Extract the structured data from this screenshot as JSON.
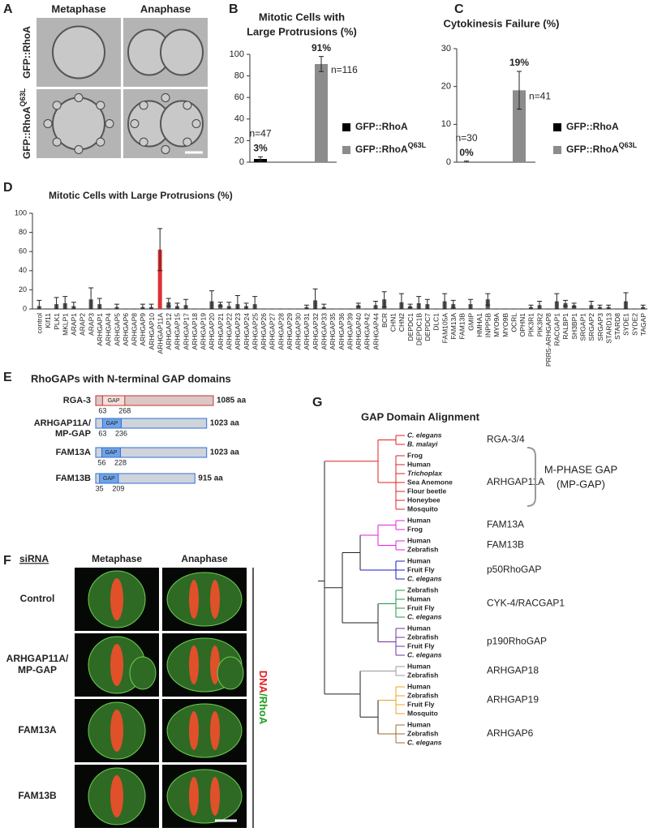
{
  "panel_labels": [
    "A",
    "B",
    "C",
    "D",
    "E",
    "F",
    "G"
  ],
  "panel_a": {
    "columns": [
      "Metaphase",
      "Anaphase"
    ],
    "rows": [
      {
        "label": "GFP::RhoA"
      },
      {
        "label": "GFP::RhoA",
        "superscript": "Q63L"
      }
    ]
  },
  "chart_data": [
    {
      "type": "bar",
      "title": [
        "Mitotic Cells with",
        "Large Protrusions (%)"
      ],
      "categories": [
        null,
        null
      ],
      "series": [
        {
          "name": "GFP::RhoA",
          "color": "#000000",
          "values": [
            3,
            null
          ],
          "value_labels": [
            "3%",
            null
          ],
          "errors": [
            2,
            null
          ],
          "annotation": "n=47"
        },
        {
          "name": "GFP::RhoA",
          "superscript": "Q63L",
          "color": "#8c8c8c",
          "values": [
            null,
            91
          ],
          "value_labels": [
            null,
            "91%"
          ],
          "errors": [
            null,
            7
          ],
          "annotation": "n=116"
        }
      ],
      "ylim": [
        0,
        100
      ],
      "yticks": [
        0,
        20,
        40,
        60,
        80,
        100
      ]
    },
    {
      "type": "bar",
      "title": [
        "Cytokinesis Failure (%)"
      ],
      "categories": [
        null,
        null
      ],
      "series": [
        {
          "name": "GFP::RhoA",
          "color": "#000000",
          "values": [
            0,
            null
          ],
          "value_labels": [
            "0%",
            null
          ],
          "errors": [
            0.3,
            null
          ],
          "annotation": "n=30"
        },
        {
          "name": "GFP::RhoA",
          "superscript": "Q63L",
          "color": "#8c8c8c",
          "values": [
            null,
            19
          ],
          "value_labels": [
            null,
            "19%"
          ],
          "errors": [
            null,
            5
          ],
          "annotation": "n=41"
        }
      ],
      "ylim": [
        0,
        30
      ],
      "yticks": [
        0,
        10,
        20,
        30
      ]
    },
    {
      "type": "bar",
      "title": [
        "Mitotic Cells with Large Protrusions (%)"
      ],
      "categories": [
        "control",
        "Kif11",
        "PLK1",
        "MKLP1",
        "ARAP1",
        "ARAP2",
        "ARAP3",
        "ARHGAP1",
        "ARHGAP4",
        "ARHGAP5",
        "ARHGAP6",
        "ARHGAP8",
        "ARHGAP9",
        "ARHGAP10",
        "ARHGAP11A",
        "ARHGAP12",
        "ARHGAP15",
        "ARHGAP17",
        "ARHGAP18",
        "ARHGAP19",
        "ARHGAP20",
        "ARHGAP21",
        "ARHGAP22",
        "ARHGAP23",
        "ARHGAP24",
        "ARHGAP25",
        "ARHGAP26",
        "ARHGAP27",
        "ARHGAP28",
        "ARHGAP29",
        "ARHGAP30",
        "ARHGAP31",
        "ARHGAP32",
        "ARHGAP33",
        "ARHGAP35",
        "ARHGAP36",
        "ARHGAP39",
        "ARHGAP40",
        "ARHGAP42",
        "ARHGAP44",
        "BCR",
        "CHN1",
        "CHN2",
        "DEPDC1",
        "DEPDC1B",
        "DEPDC7",
        "DLC1",
        "FAM105A",
        "FAM13A",
        "FAM13B",
        "GMIP",
        "HMHA1",
        "INPP5B",
        "MYO9A",
        "MYO9B",
        "OCRL",
        "OPHN1",
        "PIK3R1",
        "PIK3R2",
        "PRR5-ARHGAP8",
        "RACGAP1",
        "RALBP1",
        "SH3BP1",
        "SRGAP1",
        "SRGAP2",
        "SRGAP3",
        "STARD13",
        "STARD8",
        "SYDE1",
        "SYDE2",
        "TAGAP"
      ],
      "values": [
        3,
        0,
        5,
        6,
        3,
        0,
        10,
        5,
        0,
        2,
        0,
        0,
        2,
        2,
        62,
        7,
        3,
        4,
        0,
        0,
        8,
        5,
        3,
        5,
        3,
        5,
        0,
        0,
        0,
        0,
        0,
        2,
        9,
        2,
        0,
        0,
        0,
        4,
        0,
        4,
        10,
        0,
        7,
        3,
        6,
        5,
        0,
        8,
        5,
        0,
        5,
        0,
        10,
        0,
        0,
        0,
        0,
        2,
        4,
        0,
        8,
        6,
        4,
        0,
        4,
        2,
        2,
        0,
        8,
        0,
        2
      ],
      "errors": [
        6,
        0,
        7,
        7,
        4,
        0,
        12,
        6,
        0,
        3,
        0,
        0,
        3,
        3,
        22,
        4,
        3,
        6,
        0,
        0,
        11,
        2,
        4,
        9,
        3,
        8,
        0,
        0,
        0,
        0,
        0,
        2,
        12,
        3,
        0,
        0,
        0,
        2,
        0,
        4,
        8,
        0,
        9,
        2,
        7,
        5,
        0,
        8,
        4,
        0,
        5,
        0,
        6,
        0,
        0,
        0,
        0,
        2,
        4,
        0,
        8,
        3,
        2,
        0,
        4,
        2,
        2,
        0,
        9,
        0,
        2
      ],
      "color": "#555555",
      "colors": [
        "#555555",
        "#555555",
        "#555555",
        "#555555",
        "#555555",
        "#555555",
        "#555555",
        "#555555",
        "#555555",
        "#555555",
        "#555555",
        "#555555",
        "#555555",
        "#555555",
        "#e03030",
        "#555555",
        "#555555",
        "#555555",
        "#555555",
        "#555555",
        "#555555",
        "#555555",
        "#555555",
        "#555555",
        "#555555",
        "#555555",
        "#555555",
        "#555555",
        "#555555",
        "#555555",
        "#555555",
        "#555555",
        "#555555",
        "#555555",
        "#555555",
        "#555555",
        "#555555",
        "#555555",
        "#555555",
        "#555555",
        "#555555",
        "#555555",
        "#555555",
        "#555555",
        "#555555",
        "#555555",
        "#555555",
        "#555555",
        "#555555",
        "#555555",
        "#555555",
        "#555555",
        "#555555",
        "#555555",
        "#555555",
        "#555555",
        "#555555",
        "#555555",
        "#555555",
        "#555555",
        "#555555",
        "#555555",
        "#555555",
        "#555555",
        "#555555",
        "#555555",
        "#555555",
        "#555555",
        "#555555",
        "#555555",
        "#555555"
      ],
      "ylim": [
        0,
        100
      ],
      "yticks": [
        0,
        20,
        40,
        60,
        80,
        100
      ]
    }
  ],
  "panel_e": {
    "title": "RhoGAPs with N-terminal GAP domains",
    "gap_label": "GAP",
    "proteins": [
      {
        "name": [
          "RGA-3"
        ],
        "start": 63,
        "end": 268,
        "length": 1085,
        "length_label": "1085 aa",
        "fill": "#dcc6c6",
        "stroke": "#c0392b",
        "gap_fill": "#f3dede"
      },
      {
        "name": [
          "ARHGAP11A/",
          "MP-GAP"
        ],
        "start": 63,
        "end": 236,
        "length": 1023,
        "length_label": "1023 aa",
        "fill": "#cfd3dc",
        "stroke": "#2f6fd6",
        "gap_fill": "#6fa3e8"
      },
      {
        "name": [
          "FAM13A"
        ],
        "start": 56,
        "end": 228,
        "length": 1023,
        "length_label": "1023 aa",
        "fill": "#cfd3dc",
        "stroke": "#2f6fd6",
        "gap_fill": "#6fa3e8"
      },
      {
        "name": [
          "FAM13B"
        ],
        "start": 35,
        "end": 209,
        "length": 915,
        "length_label": "915 aa",
        "fill": "#cfd3dc",
        "stroke": "#2f6fd6",
        "gap_fill": "#6fa3e8"
      }
    ]
  },
  "panel_f": {
    "header": "siRNA",
    "columns": [
      "Metaphase",
      "Anaphase"
    ],
    "rows": [
      [
        "Control"
      ],
      [
        "ARHGAP11A/",
        "MP-GAP"
      ],
      [
        "FAM13A"
      ],
      [
        "FAM13B"
      ]
    ],
    "stain": [
      {
        "text": "DNA",
        "color": "#e02020"
      },
      {
        "text": "/RhoA",
        "color": "#22a022"
      }
    ]
  },
  "panel_g": {
    "title": "GAP Domain Alignment",
    "bracket": [
      "M-PHASE GAP",
      "(MP-GAP)"
    ],
    "groups": [
      {
        "label": "RGA-3/4",
        "color": "#e02020",
        "leaves": [
          {
            "name": "C. elegans",
            "italic": true
          },
          {
            "name": "B. malayi",
            "italic": true
          }
        ]
      },
      {
        "label": "ARHGAP11A",
        "color": "#e02020",
        "leaves": [
          "Frog",
          "Human",
          {
            "name": "Trichoplax",
            "italic": true
          },
          "Sea Anemone",
          "Flour beetle",
          "Honeybee",
          "Mosquito"
        ]
      },
      {
        "label": "FAM13A",
        "color": "#e020e0",
        "leaves": [
          "Human",
          "Frog"
        ]
      },
      {
        "label": "FAM13B",
        "color": "#e020e0",
        "leaves": [
          "Human",
          "Zebrafish"
        ]
      },
      {
        "label": "p50RhoGAP",
        "color": "#1a1ad0",
        "leaves": [
          "Human",
          "Fruit Fly",
          {
            "name": "C. elegans",
            "italic": true
          }
        ]
      },
      {
        "label": "CYK-4/RACGAP1",
        "color": "#1f9a40",
        "leaves": [
          "Zebrafish",
          "Human",
          "Fruit Fly",
          {
            "name": "C. elegans",
            "italic": true
          }
        ]
      },
      {
        "label": "p190RhoGAP",
        "color": "#7030a0",
        "leaves": [
          "Human",
          "Zebrafish",
          "Fruit Fly",
          {
            "name": "C. elegans",
            "italic": true
          }
        ]
      },
      {
        "label": "ARHGAP18",
        "color": "#999999",
        "leaves": [
          "Human",
          "Zebrafish"
        ]
      },
      {
        "label": "ARHGAP19",
        "color": "#f0a020",
        "leaves": [
          "Human",
          "Zebrafish",
          "Fruit Fly",
          "Mosquito"
        ]
      },
      {
        "label": "ARHGAP6",
        "color": "#a06830",
        "leaves": [
          "Human",
          "Zebrafish",
          {
            "name": "C. elegans",
            "italic": true
          }
        ]
      }
    ]
  }
}
